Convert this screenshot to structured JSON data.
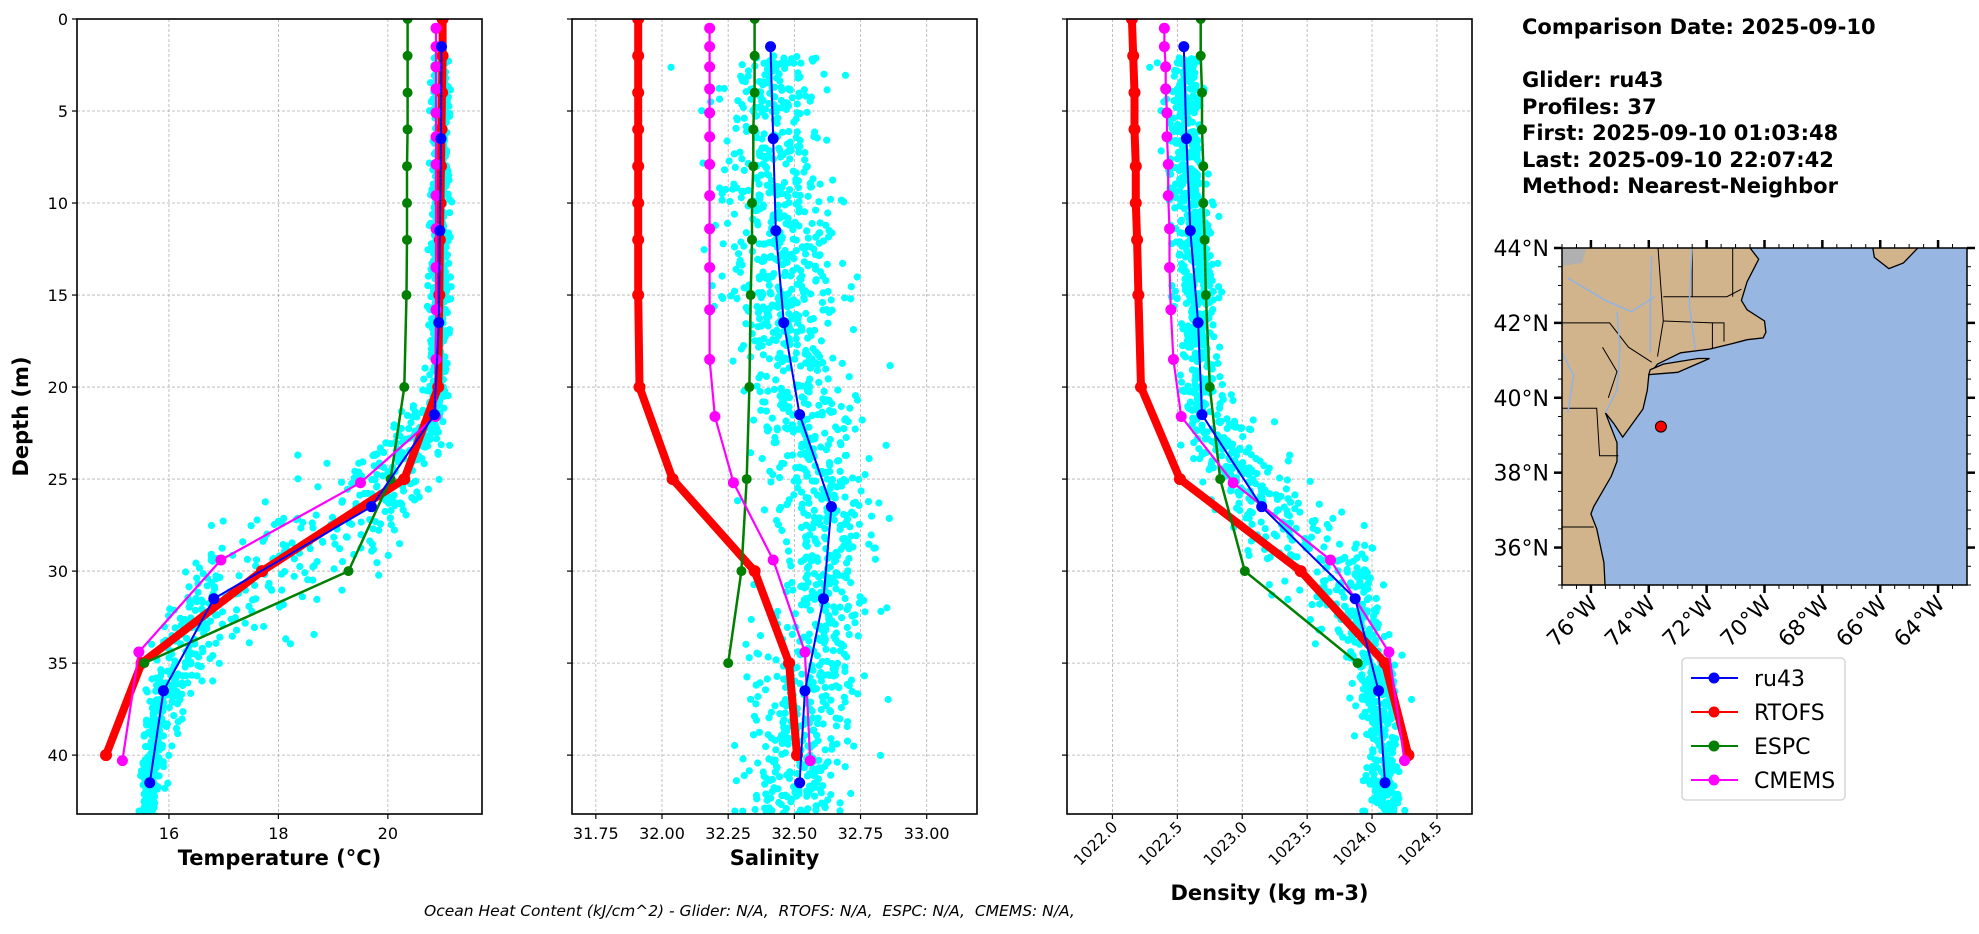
{
  "info": {
    "comparison_date": "Comparison Date: 2025-09-10",
    "glider": "Glider: ru43",
    "profiles": "Profiles: 37",
    "first": "First: 2025-09-10 01:03:48",
    "last": "Last: 2025-09-10 22:07:42",
    "method": "Method: Nearest-Neighbor"
  },
  "footer": "Ocean Heat Content (kJ/cm^2) - Glider: N/A,  RTOFS: N/A,  ESPC: N/A,  CMEMS: N/A,",
  "colors": {
    "ru43": "#0000ff",
    "RTOFS": "#ff0000",
    "ESPC": "#008000",
    "CMEMS": "#ff00ff",
    "glider_points": "#00ffff",
    "land": "#d2b48c",
    "ocean": "#97b6e1"
  },
  "legend": [
    "ru43",
    "RTOFS",
    "ESPC",
    "CMEMS"
  ],
  "chart_data": [
    {
      "type": "line",
      "xlabel": "Temperature (°C)",
      "ylabel": "Depth (m)",
      "xlim": [
        14.32,
        21.72
      ],
      "ylim": [
        43.2,
        0
      ],
      "y_inverted": true,
      "grid": true,
      "xticks": [
        "16",
        "18",
        "20"
      ],
      "xtick_values": [
        16,
        18,
        20
      ],
      "yticks": [
        "0",
        "5",
        "10",
        "15",
        "20",
        "25",
        "30",
        "35",
        "40"
      ],
      "ytick_values": [
        0,
        5,
        10,
        15,
        20,
        25,
        30,
        35,
        40
      ],
      "series": [
        {
          "name": "RTOFS",
          "depth": [
            0,
            2,
            4,
            6,
            8,
            10,
            12,
            15,
            20,
            25,
            30,
            35,
            40
          ],
          "values": [
            21.0,
            21.0,
            20.99,
            20.98,
            20.97,
            20.96,
            20.95,
            20.94,
            20.92,
            20.3,
            17.7,
            15.5,
            14.85
          ]
        },
        {
          "name": "ESPC",
          "depth": [
            0,
            2,
            4,
            6,
            8,
            10,
            12,
            15,
            20,
            25,
            30,
            35
          ],
          "values": [
            20.36,
            20.36,
            20.36,
            20.36,
            20.35,
            20.35,
            20.35,
            20.34,
            20.3,
            20.05,
            19.28,
            15.55
          ]
        },
        {
          "name": "CMEMS",
          "depth": [
            0.5,
            1.5,
            2.6,
            3.8,
            5.1,
            6.4,
            7.9,
            9.6,
            11.4,
            13.5,
            15.8,
            18.5,
            21.6,
            25.2,
            29.4,
            34.4,
            40.3
          ],
          "values": [
            20.88,
            20.88,
            20.88,
            20.88,
            20.88,
            20.88,
            20.88,
            20.88,
            20.88,
            20.88,
            20.88,
            20.88,
            20.87,
            19.5,
            16.95,
            15.45,
            15.15
          ]
        },
        {
          "name": "ru43",
          "depth": [
            1.5,
            6.5,
            11.5,
            16.5,
            21.5,
            26.5,
            31.5,
            36.5,
            41.5
          ],
          "values": [
            20.98,
            20.97,
            20.95,
            20.93,
            20.85,
            19.7,
            16.82,
            15.9,
            15.65
          ]
        }
      ]
    },
    {
      "type": "line",
      "xlabel": "Salinity",
      "xlim": [
        31.66,
        33.19
      ],
      "ylim": [
        43.2,
        0
      ],
      "y_inverted": true,
      "grid": true,
      "xticks": [
        "31.75",
        "32.00",
        "32.25",
        "32.50",
        "32.75",
        "33.00"
      ],
      "xtick_values": [
        31.75,
        32.0,
        32.25,
        32.5,
        32.75,
        33.0
      ],
      "ytick_values": [
        0,
        5,
        10,
        15,
        20,
        25,
        30,
        35,
        40
      ],
      "series": [
        {
          "name": "RTOFS",
          "depth": [
            0,
            2,
            4,
            6,
            8,
            10,
            12,
            15,
            20,
            25,
            30,
            35,
            40
          ],
          "values": [
            31.91,
            31.91,
            31.91,
            31.91,
            31.91,
            31.91,
            31.91,
            31.91,
            31.915,
            32.04,
            32.35,
            32.48,
            32.51
          ]
        },
        {
          "name": "ESPC",
          "depth": [
            0,
            2,
            4,
            6,
            8,
            10,
            12,
            15,
            20,
            25,
            30,
            35
          ],
          "values": [
            32.35,
            32.35,
            32.35,
            32.345,
            32.345,
            32.34,
            32.34,
            32.335,
            32.33,
            32.32,
            32.3,
            32.25
          ]
        },
        {
          "name": "CMEMS",
          "depth": [
            0.5,
            1.5,
            2.6,
            3.8,
            5.1,
            6.4,
            7.9,
            9.6,
            11.4,
            13.5,
            15.8,
            18.5,
            21.6,
            25.2,
            29.4,
            34.4,
            40.3
          ],
          "values": [
            32.18,
            32.18,
            32.18,
            32.18,
            32.18,
            32.18,
            32.18,
            32.18,
            32.18,
            32.18,
            32.18,
            32.18,
            32.2,
            32.27,
            32.42,
            32.54,
            32.56
          ]
        },
        {
          "name": "ru43",
          "depth": [
            1.5,
            6.5,
            11.5,
            16.5,
            21.5,
            26.5,
            31.5,
            36.5,
            41.5
          ],
          "values": [
            32.41,
            32.42,
            32.43,
            32.46,
            32.52,
            32.64,
            32.61,
            32.54,
            32.52
          ]
        }
      ]
    },
    {
      "type": "line",
      "xlabel": "Density (kg m-3)",
      "xlim": [
        1021.65,
        1024.77
      ],
      "ylim": [
        43.2,
        0
      ],
      "y_inverted": true,
      "grid": true,
      "xticks": [
        "1022.0",
        "1022.5",
        "1023.0",
        "1023.5",
        "1024.0",
        "1024.5"
      ],
      "xtick_values": [
        1022.0,
        1022.5,
        1023.0,
        1023.5,
        1024.0,
        1024.5
      ],
      "ytick_values": [
        0,
        5,
        10,
        15,
        20,
        25,
        30,
        35,
        40
      ],
      "series": [
        {
          "name": "RTOFS",
          "depth": [
            0,
            2,
            4,
            6,
            8,
            10,
            12,
            15,
            20,
            25,
            30,
            35,
            40
          ],
          "values": [
            1022.15,
            1022.16,
            1022.17,
            1022.17,
            1022.18,
            1022.18,
            1022.19,
            1022.2,
            1022.22,
            1022.52,
            1023.45,
            1024.1,
            1024.28
          ]
        },
        {
          "name": "ESPC",
          "depth": [
            0,
            2,
            4,
            6,
            8,
            10,
            12,
            15,
            20,
            25,
            30,
            35
          ],
          "values": [
            1022.68,
            1022.68,
            1022.69,
            1022.69,
            1022.7,
            1022.7,
            1022.71,
            1022.72,
            1022.75,
            1022.83,
            1023.02,
            1023.89
          ]
        },
        {
          "name": "CMEMS",
          "depth": [
            0.5,
            1.5,
            2.6,
            3.8,
            5.1,
            6.4,
            7.9,
            9.6,
            11.4,
            13.5,
            15.8,
            18.5,
            21.6,
            25.2,
            29.4,
            34.4,
            40.3
          ],
          "values": [
            1022.4,
            1022.4,
            1022.41,
            1022.41,
            1022.42,
            1022.42,
            1022.43,
            1022.43,
            1022.44,
            1022.44,
            1022.45,
            1022.47,
            1022.53,
            1022.93,
            1023.68,
            1024.13,
            1024.25
          ]
        },
        {
          "name": "ru43",
          "depth": [
            1.5,
            6.5,
            11.5,
            16.5,
            21.5,
            26.5,
            31.5,
            36.5,
            41.5
          ],
          "values": [
            1022.55,
            1022.57,
            1022.6,
            1022.66,
            1022.69,
            1023.15,
            1023.87,
            1024.05,
            1024.1
          ]
        }
      ]
    }
  ],
  "map": {
    "lon_range": [
      -77,
      -63
    ],
    "lat_range": [
      35,
      44
    ],
    "lat_ticks": [
      "36°N",
      "38°N",
      "40°N",
      "42°N",
      "44°N"
    ],
    "lat_tick_values": [
      36,
      38,
      40,
      42,
      44
    ],
    "lon_ticks": [
      "76°W",
      "74°W",
      "72°W",
      "70°W",
      "68°W",
      "66°W",
      "64°W"
    ],
    "lon_tick_values": [
      -76,
      -74,
      -72,
      -70,
      -68,
      -66,
      -64
    ],
    "glider_position": {
      "lon": -73.58,
      "lat": 39.23
    }
  }
}
